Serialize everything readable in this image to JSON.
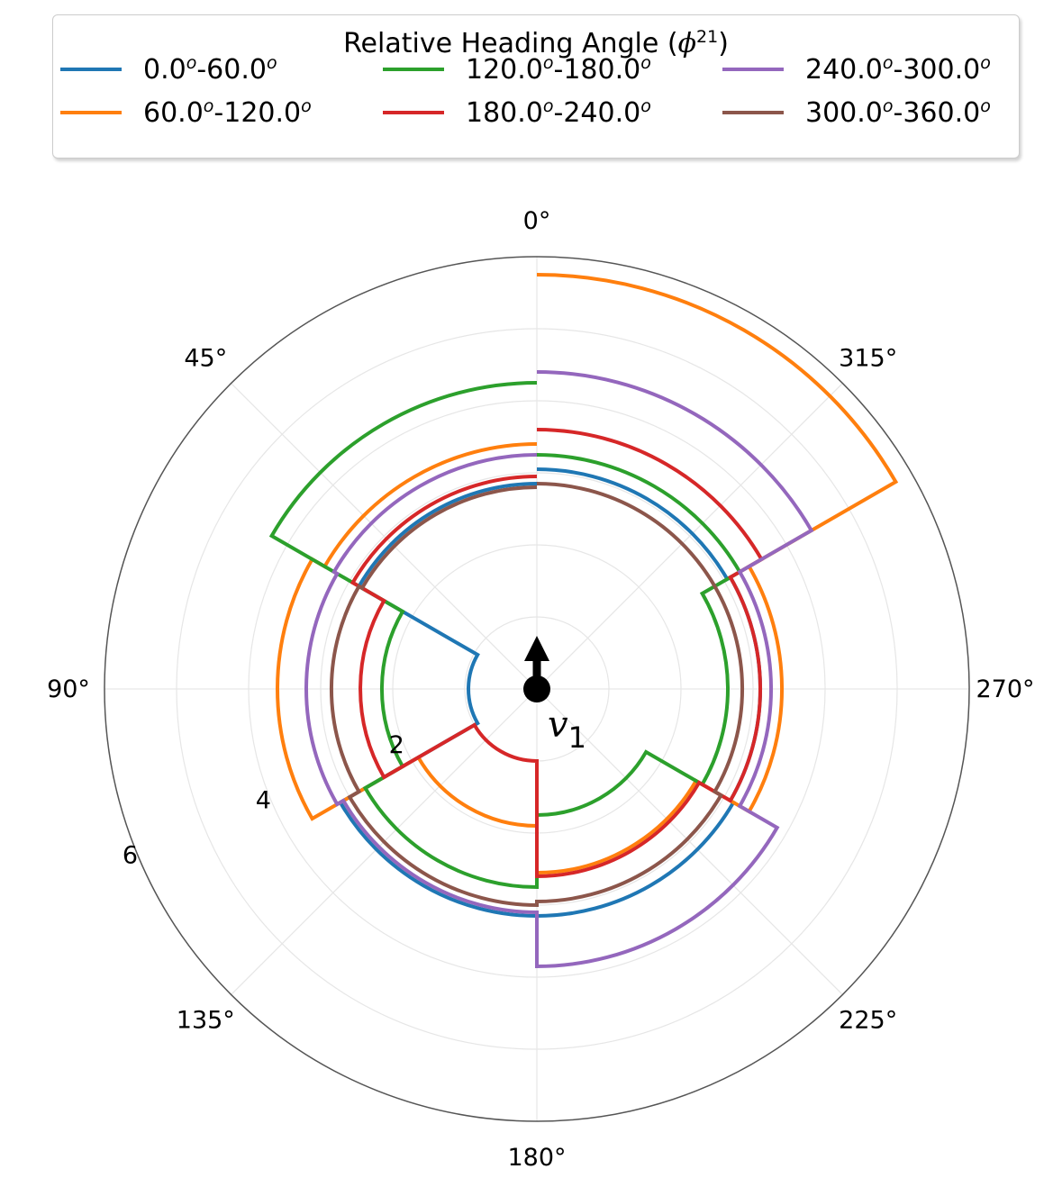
{
  "chart_data": {
    "type": "polar-step",
    "legend_title_prefix": "Relative Heading Angle (",
    "legend_title_symbol": "ϕ",
    "legend_title_sup": "21",
    "legend_title_suffix": ")",
    "theta_direction": "counterclockwise",
    "theta_zero": "top",
    "theta_tick_labels": [
      "0°",
      "45°",
      "90°",
      "135°",
      "180°",
      "225°",
      "270°",
      "315°"
    ],
    "theta_ticks": [
      0,
      45,
      90,
      135,
      180,
      225,
      270,
      315
    ],
    "r_tick_labels": [
      "2",
      "4",
      "6"
    ],
    "r_ticks": [
      2,
      4,
      6
    ],
    "r_max": 6,
    "grid": true,
    "legend_position": "top",
    "theta_bins": [
      [
        0,
        60
      ],
      [
        60,
        120
      ],
      [
        120,
        180
      ],
      [
        180,
        240
      ],
      [
        240,
        300
      ],
      [
        300,
        360
      ]
    ],
    "series": [
      {
        "name_a": "0.0",
        "name_b": "-60.0",
        "sup": "o",
        "color": "#1f77b4",
        "values": [
          2.85,
          0.95,
          3.15,
          3.15,
          3.1,
          3.05
        ]
      },
      {
        "name_a": "60.0",
        "name_b": "-120.0",
        "sup": "o",
        "color": "#ff7f0e",
        "values": [
          3.4,
          3.6,
          1.9,
          2.55,
          3.4,
          5.75
        ]
      },
      {
        "name_a": "120.0",
        "name_b": "-180.0",
        "sup": "o",
        "color": "#2ca02c",
        "values": [
          4.25,
          2.15,
          2.75,
          1.75,
          2.65,
          3.25
        ]
      },
      {
        "name_a": "180.0",
        "name_b": "-240.0",
        "sup": "o",
        "color": "#d62728",
        "values": [
          2.95,
          2.45,
          1.0,
          2.6,
          3.1,
          3.6
        ]
      },
      {
        "name_a": "240.0",
        "name_b": "-300.0",
        "sup": "o",
        "color": "#9467bd",
        "values": [
          3.25,
          3.2,
          3.1,
          3.85,
          3.25,
          4.4
        ]
      },
      {
        "name_a": "300.0",
        "name_b": "-360.0",
        "sup": "o",
        "color": "#8c564b",
        "values": [
          2.8,
          2.85,
          3.0,
          2.95,
          2.85,
          2.85
        ]
      }
    ],
    "annotation": {
      "symbol": "v",
      "subscript": "1"
    }
  }
}
